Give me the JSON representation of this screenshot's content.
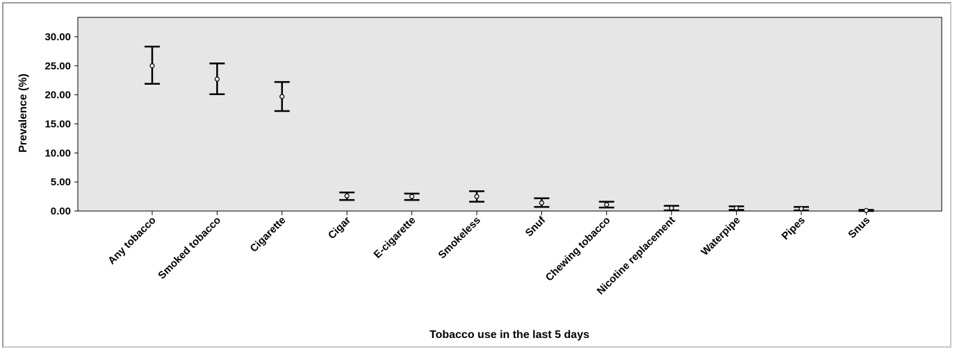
{
  "chart_data": {
    "type": "errorbar",
    "title": "",
    "xlabel": "Tobacco use in the last 5 days",
    "ylabel": "Prevalence (%)",
    "ylim": [
      0,
      32
    ],
    "yticks": [
      "0.00",
      "5.00",
      "10.00",
      "15.00",
      "20.00",
      "25.00",
      "30.00"
    ],
    "ytick_values": [
      0,
      5,
      10,
      15,
      20,
      25,
      30
    ],
    "grid": false,
    "categories": [
      "Any tobacco",
      "Smoked tobacco",
      "Cigarette",
      "Cigar",
      "E-cigarette",
      "Smokeless",
      "Snuf",
      "Chewing tobacco",
      "Nicotine replacement",
      "Waterpipe",
      "Pipes",
      "Snus"
    ],
    "values": [
      25.0,
      22.7,
      19.7,
      2.6,
      2.5,
      2.5,
      1.4,
      1.1,
      0.5,
      0.5,
      0.4,
      0.1
    ],
    "lower": [
      21.9,
      20.1,
      17.2,
      1.9,
      1.9,
      1.6,
      0.7,
      0.6,
      0.1,
      0.2,
      0.1,
      0.0
    ],
    "upper": [
      28.3,
      25.4,
      22.2,
      3.2,
      3.0,
      3.4,
      2.2,
      1.6,
      0.9,
      0.8,
      0.7,
      0.2
    ],
    "colors": {
      "plot_background": "#e6e6e6",
      "marks": "#000000",
      "frame": "#9a9a9a"
    }
  }
}
